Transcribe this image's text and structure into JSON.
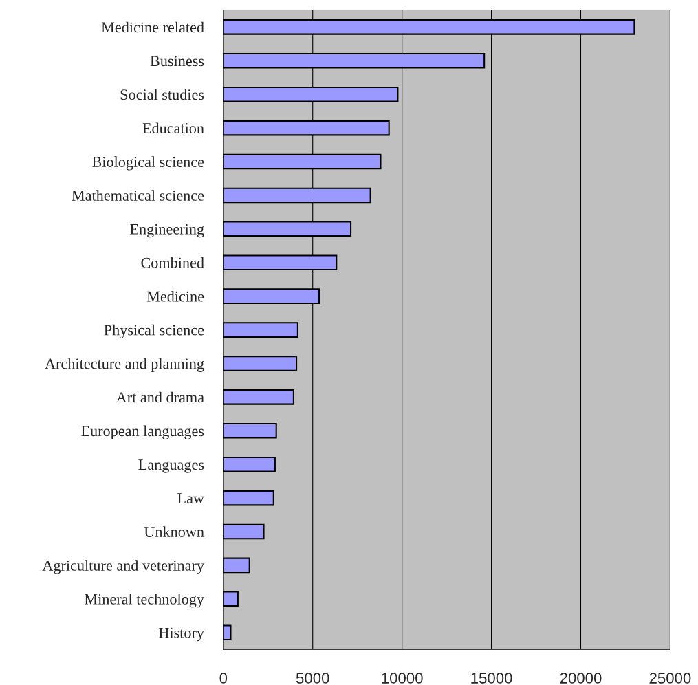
{
  "chart_data": {
    "type": "bar",
    "orientation": "horizontal",
    "categories": [
      "Medicine related",
      "Business",
      "Social studies",
      "Education",
      "Biological science",
      "Mathematical science",
      "Engineering",
      "Combined",
      "Medicine",
      "Physical science",
      "Architecture and planning",
      "Art and drama",
      "European languages",
      "Languages",
      "Law",
      "Unknown",
      "Agriculture and veterinary",
      "Mineral technology",
      "History"
    ],
    "values": [
      23000,
      14600,
      9760,
      9270,
      8800,
      8230,
      7130,
      6330,
      5360,
      4160,
      4090,
      3930,
      2960,
      2890,
      2810,
      2260,
      1460,
      810,
      410
    ],
    "color": "#9999ff",
    "xlim": [
      0,
      25000
    ],
    "xticks": [
      0,
      5000,
      10000,
      15000,
      20000,
      25000
    ],
    "grid": "x",
    "legend": false
  }
}
